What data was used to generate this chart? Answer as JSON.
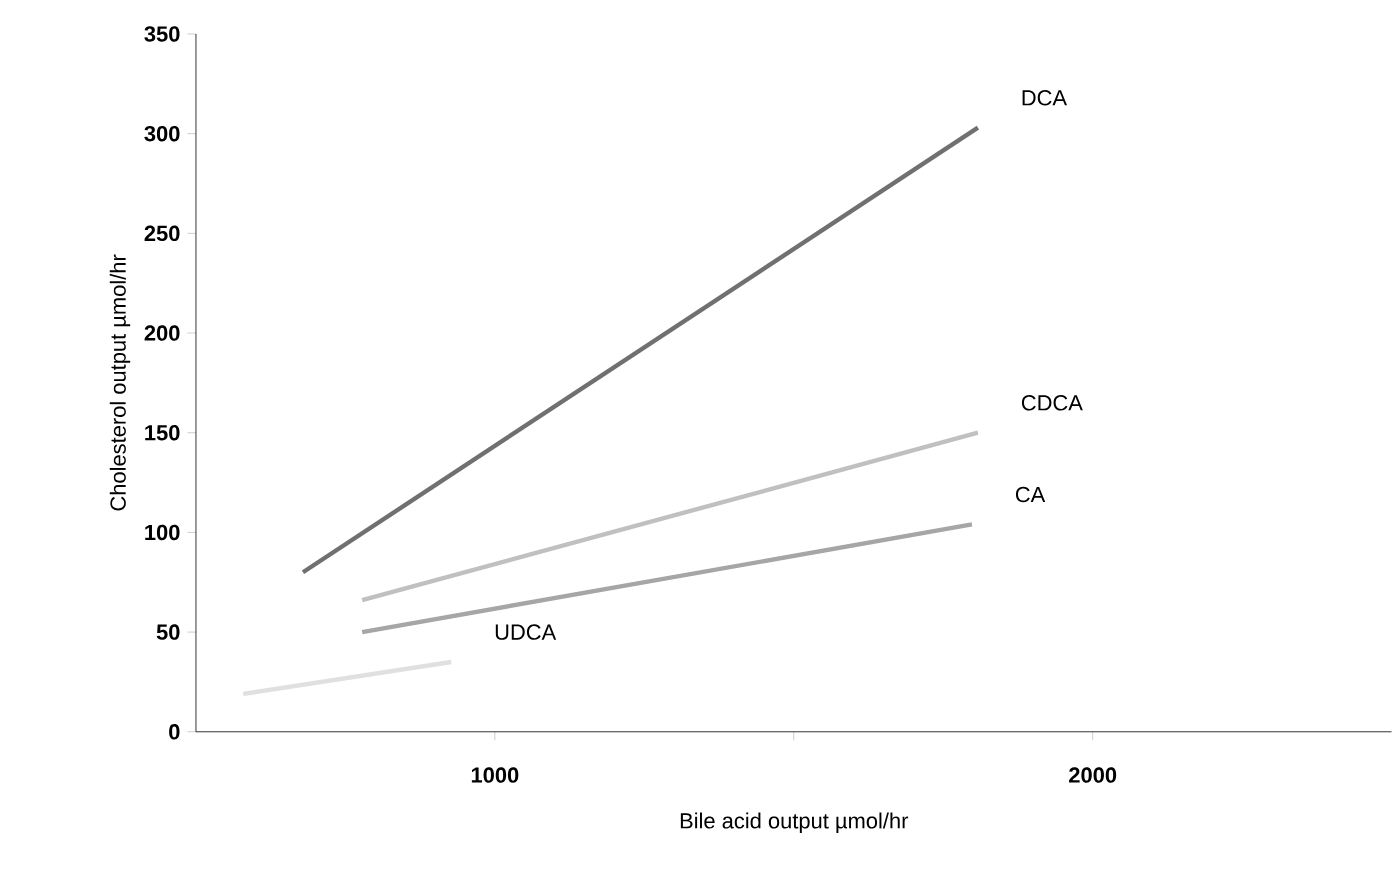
{
  "chart_data": {
    "type": "line",
    "xlabel": "Bile acid output µmol/hr",
    "ylabel": "Cholesterol output µmol/hr",
    "xlim": [
      500,
      2500
    ],
    "xticks": [
      1000,
      {
        "value": 1500,
        "label": null
      },
      2000
    ],
    "ylim": [
      0,
      350
    ],
    "yticks": [
      0,
      50,
      100,
      150,
      200,
      250,
      300,
      350
    ],
    "grid": false,
    "marker": "none",
    "line_style": "solid",
    "series": [
      {
        "name": "DCA",
        "color": "#707070",
        "x": [
          679,
          1808
        ],
        "values": [
          80,
          303
        ]
      },
      {
        "name": "CDCA",
        "color": "#c0c0c0",
        "x": [
          778,
          1808
        ],
        "values": [
          66,
          150
        ]
      },
      {
        "name": "CA",
        "color": "#a6a6a6",
        "x": [
          778,
          1798
        ],
        "values": [
          50,
          104
        ]
      },
      {
        "name": "UDCA",
        "color": "#e0e0e0",
        "x": [
          579,
          927
        ],
        "values": [
          19,
          35
        ]
      }
    ]
  }
}
